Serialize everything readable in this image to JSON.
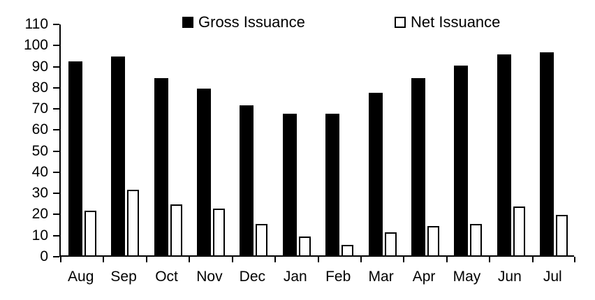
{
  "chart_data": {
    "type": "bar",
    "title": "",
    "xlabel": "",
    "ylabel": "",
    "categories": [
      "Aug",
      "Sep",
      "Oct",
      "Nov",
      "Dec",
      "Jan",
      "Feb",
      "Mar",
      "Apr",
      "May",
      "Jun",
      "Jul"
    ],
    "series": [
      {
        "name": "Gross Issuance",
        "style": "filled",
        "fill": "#000000",
        "values": [
          92,
          94,
          84,
          79,
          71,
          67,
          67,
          77,
          84,
          90,
          95,
          96
        ]
      },
      {
        "name": "Net Issuance",
        "style": "outline",
        "fill": "#ffffff",
        "border": "#000000",
        "values": [
          21,
          31,
          24,
          22,
          15,
          9,
          5,
          11,
          14,
          15,
          23,
          19
        ]
      }
    ],
    "ylim": [
      0,
      110
    ],
    "yticks": [
      0,
      10,
      20,
      30,
      40,
      50,
      60,
      70,
      80,
      90,
      100,
      110
    ],
    "grid": false,
    "legend_position": "top"
  },
  "colors": {
    "background": "#ffffff",
    "axis": "#000000",
    "text": "#000000",
    "gross_fill": "#000000",
    "net_fill": "#ffffff",
    "net_border": "#000000"
  }
}
